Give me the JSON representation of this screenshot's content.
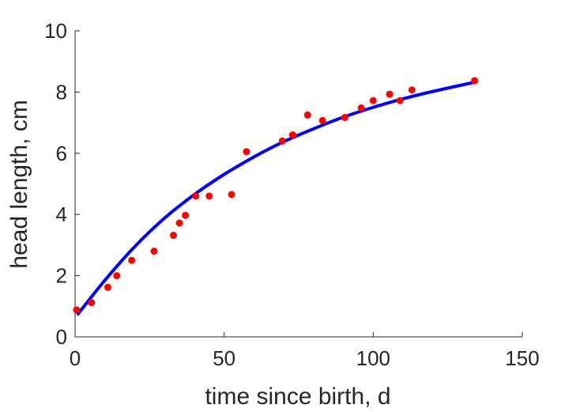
{
  "chart_data": {
    "type": "scatter",
    "title": "",
    "xlabel": "time since birth, d",
    "ylabel": "head length, cm",
    "xlim": [
      0,
      150
    ],
    "ylim": [
      0,
      10
    ],
    "xticks": [
      0,
      50,
      100,
      150
    ],
    "yticks": [
      0,
      2,
      4,
      6,
      8,
      10
    ],
    "grid": false,
    "series": [
      {
        "kind": "scatter",
        "color": "#ff0000",
        "x": [
          0.5,
          5.5,
          11,
          14,
          19,
          26.5,
          33,
          35,
          37,
          40.5,
          45,
          52.5,
          57.5,
          69.5,
          73,
          78,
          83,
          90.5,
          96,
          100,
          105.5,
          109,
          113,
          134
        ],
        "y": [
          0.88,
          1.12,
          1.62,
          2.0,
          2.5,
          2.8,
          3.32,
          3.72,
          3.97,
          4.6,
          4.6,
          4.65,
          6.05,
          6.4,
          6.6,
          7.25,
          7.07,
          7.17,
          7.48,
          7.72,
          7.93,
          7.72,
          8.07,
          8.37
        ]
      },
      {
        "kind": "line",
        "color": "#0000ff",
        "x": [
          1,
          10,
          20,
          30,
          40,
          50,
          60,
          70,
          80,
          90,
          100,
          110,
          120,
          134
        ],
        "y": [
          0.75,
          1.85,
          2.95,
          3.88,
          4.65,
          5.31,
          5.88,
          6.38,
          6.8,
          7.18,
          7.5,
          7.78,
          8.02,
          8.32
        ]
      }
    ]
  }
}
